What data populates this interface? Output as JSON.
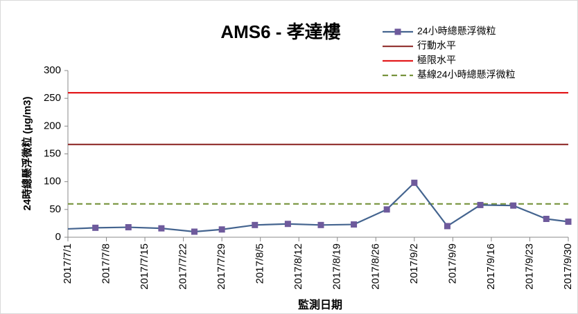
{
  "chart_data": {
    "type": "line",
    "title": "AMS6 - 孝達樓",
    "x_label": "監測日期",
    "y_label": "24時總懸浮微粒 (μg/m3)",
    "x": [
      "2017/7/1",
      "2017/7/6",
      "2017/7/12",
      "2017/7/18",
      "2017/7/24",
      "2017/7/29",
      "2017/8/4",
      "2017/8/10",
      "2017/8/16",
      "2017/8/22",
      "2017/8/28",
      "2017/9/2",
      "2017/9/8",
      "2017/9/14",
      "2017/9/20",
      "2017/9/26",
      "2017/9/30"
    ],
    "series": [
      {
        "name": "24小時總懸浮微粒",
        "color": "#44648f",
        "marker_color": "#6e5a9c",
        "values": [
          15,
          17,
          18,
          16,
          10,
          14,
          22,
          24,
          22,
          23,
          50,
          98,
          20,
          58,
          57,
          33,
          28
        ]
      }
    ],
    "reference_lines": [
      {
        "name": "行動水平",
        "color": "#953735",
        "value": 167,
        "dashed": false
      },
      {
        "name": "極限水平",
        "color": "#e31a1c",
        "value": 260,
        "dashed": false
      },
      {
        "name": "基線24小時總懸浮微粒",
        "color": "#77933c",
        "value": 60,
        "dashed": true
      }
    ],
    "xlim": [
      "2017/7/1",
      "2017/9/30"
    ],
    "xticks": [
      "2017/7/1",
      "2017/7/8",
      "2017/7/15",
      "2017/7/22",
      "2017/7/29",
      "2017/8/5",
      "2017/8/12",
      "2017/8/19",
      "2017/8/26",
      "2017/9/2",
      "2017/9/9",
      "2017/9/16",
      "2017/9/23",
      "2017/9/30"
    ],
    "ylim": [
      0,
      300
    ],
    "yticks": [
      0,
      50,
      100,
      150,
      200,
      250,
      300
    ],
    "grid": false,
    "legend": "top-right"
  }
}
